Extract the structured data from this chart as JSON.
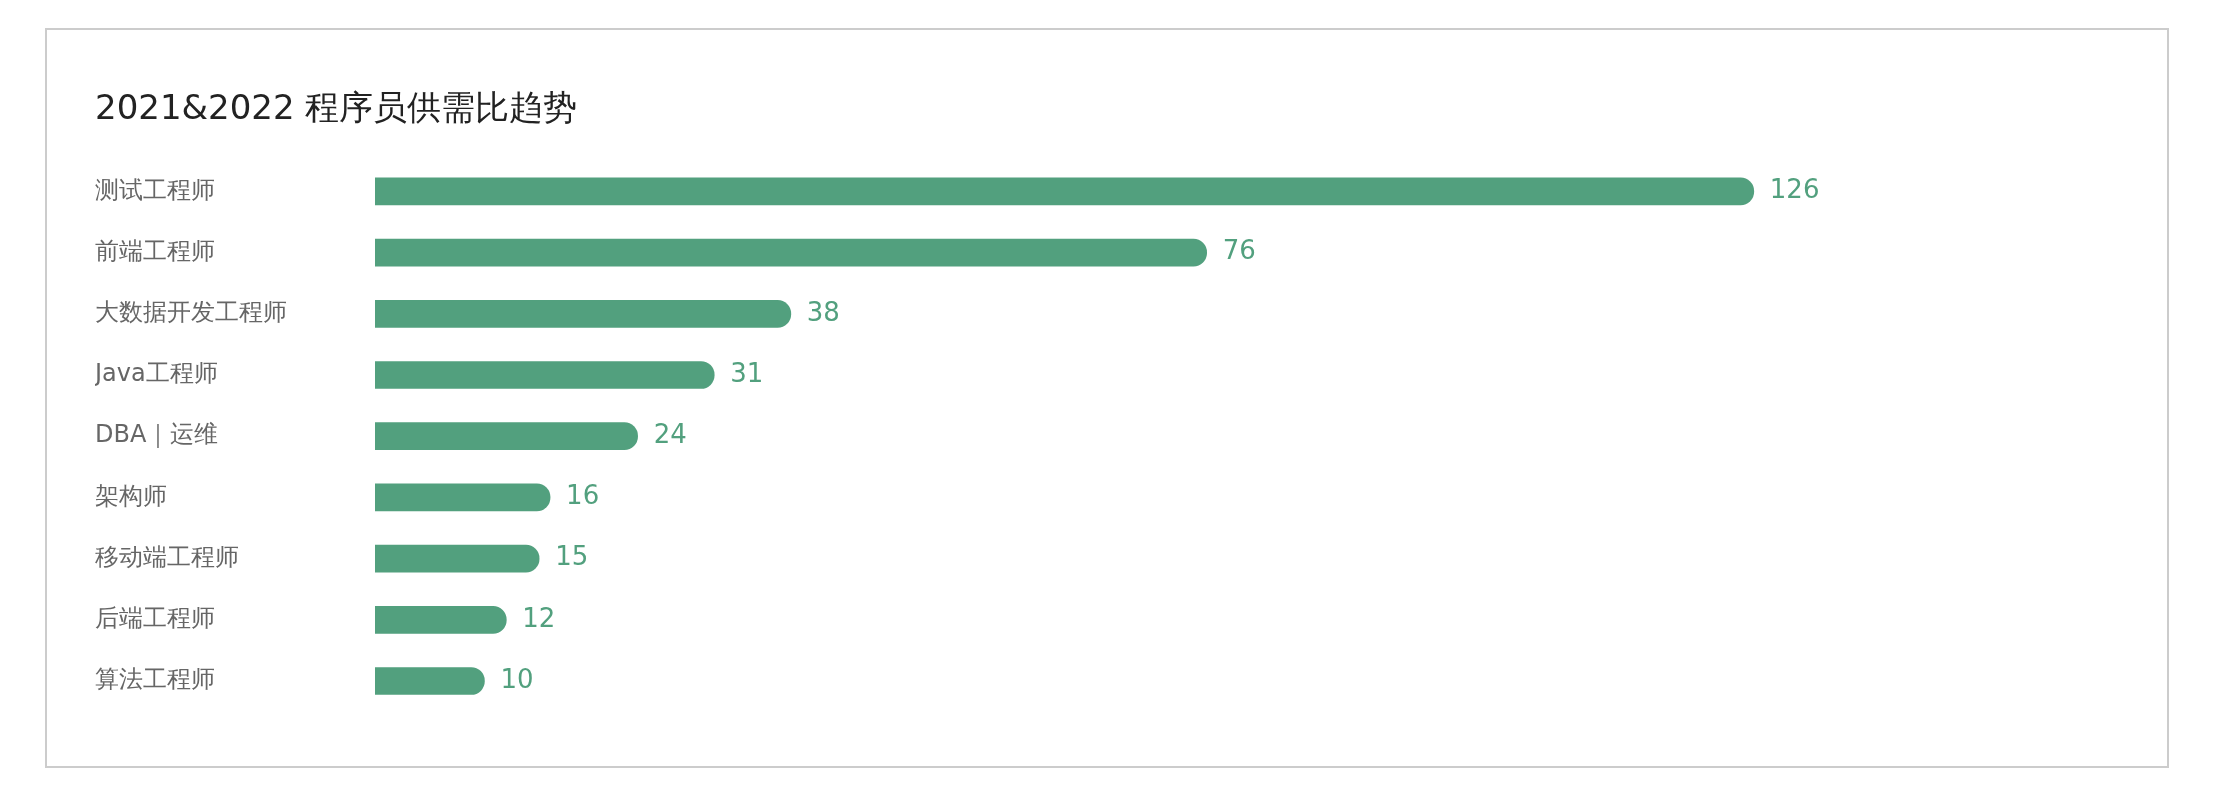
{
  "chart_data": {
    "type": "bar",
    "orientation": "horizontal",
    "title": "2021&2022 程序员供需比趋势",
    "categories": [
      "测试工程师",
      "前端工程师",
      "大数据开发工程师",
      "Java工程师",
      "DBA｜运维",
      "架构师",
      "移动端工程师",
      "后端工程师",
      "算法工程师"
    ],
    "values": [
      126,
      76,
      38,
      31,
      24,
      16,
      15,
      12,
      10
    ],
    "color": "#52a07e",
    "data_labels": true,
    "legend": false
  }
}
